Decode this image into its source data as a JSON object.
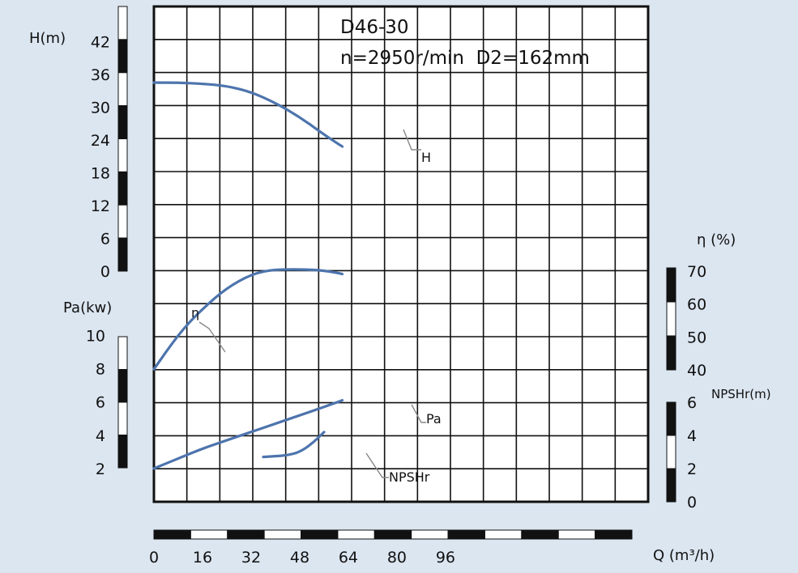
{
  "chart_data": {
    "type": "line",
    "title": "D46-30",
    "subtitle": "n=2950r/min  D2=162mm",
    "xlabel": "Q (m³/h)",
    "x_ticks": [
      0,
      16,
      32,
      48,
      64,
      80,
      96
    ],
    "axes": {
      "H": {
        "label": "H(m)",
        "ticks": [
          0,
          6,
          12,
          18,
          24,
          30,
          36,
          42
        ],
        "range": [
          0,
          42
        ]
      },
      "Pa": {
        "label": "Pa(kw)",
        "ticks": [
          2,
          4,
          6,
          8,
          10
        ],
        "range": [
          0,
          10
        ]
      },
      "eta": {
        "label": "η (%)",
        "ticks": [
          40,
          50,
          60,
          70
        ],
        "range": [
          40,
          70
        ]
      },
      "NPSHr": {
        "label": "NPSHr(m)",
        "ticks": [
          0,
          2,
          4,
          6
        ],
        "range": [
          0,
          6
        ]
      }
    },
    "grid": true,
    "series": [
      {
        "name": "H",
        "axis": "H",
        "x": [
          0,
          8,
          16,
          24,
          32,
          40,
          48,
          56,
          62
        ],
        "y": [
          34.5,
          34.5,
          34.3,
          33.9,
          32.8,
          30.8,
          28.2,
          25.0,
          22.8
        ]
      },
      {
        "name": "η",
        "axis": "eta",
        "x": [
          0,
          4,
          8,
          12,
          16,
          20,
          24,
          28,
          32,
          36,
          40,
          44,
          48,
          52,
          56,
          60,
          62
        ],
        "y": [
          40.2,
          45.5,
          50.5,
          54.8,
          58.4,
          61.8,
          64.7,
          67.0,
          68.8,
          69.9,
          70.4,
          70.5,
          70.5,
          70.4,
          70.1,
          69.5,
          69.1
        ]
      },
      {
        "name": "Pa",
        "axis": "Pa",
        "x": [
          0,
          8,
          16,
          24,
          32,
          40,
          48,
          56,
          62
        ],
        "y": [
          2.0,
          2.6,
          3.2,
          3.7,
          4.2,
          4.7,
          5.2,
          5.7,
          6.1
        ]
      },
      {
        "name": "NPSHr",
        "axis": "NPSHr",
        "x": [
          36,
          40,
          44,
          48,
          52,
          56
        ],
        "y": [
          2.7,
          2.75,
          2.8,
          3.0,
          3.5,
          4.2
        ]
      }
    ],
    "series_labels": [
      "H",
      "η",
      "Pa",
      "NPSHr"
    ]
  },
  "colors": {
    "background": "#dce6f1",
    "curve": "#4d74ad",
    "grid": "#111111",
    "plot_bg": "#ffffff"
  }
}
